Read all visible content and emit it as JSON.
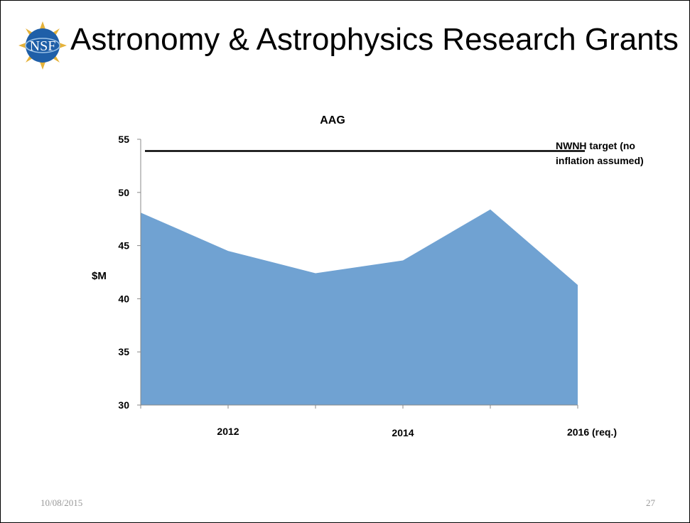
{
  "slide": {
    "title": "Astronomy & Astrophysics Research Grants",
    "logo_text": "NSF",
    "footer_date": "10/08/2015",
    "page_number": "27"
  },
  "colors": {
    "area_fill": "#70a2d2",
    "target_line": "#000000",
    "axis": "#888888"
  },
  "chart_data": {
    "type": "area",
    "title": "AAG",
    "ylabel": "$M",
    "xlabel": "",
    "ylim": [
      30,
      55
    ],
    "yticks": [
      30,
      35,
      40,
      45,
      50,
      55
    ],
    "x": [
      2011,
      2012,
      2013,
      2014,
      2015,
      2016
    ],
    "x_tick_labels": [
      {
        "x": 2012,
        "label": "2012"
      },
      {
        "x": 2014,
        "label": "2014"
      },
      {
        "x": 2016,
        "label": "2016  (req.)"
      }
    ],
    "series": [
      {
        "values": [
          48.1,
          44.5,
          42.4,
          43.6,
          48.4,
          41.3
        ]
      }
    ],
    "reference_line": {
      "value": 53.9,
      "label_lines": [
        "NWNH target (no",
        "inflation assumed)"
      ]
    },
    "grid": false
  }
}
